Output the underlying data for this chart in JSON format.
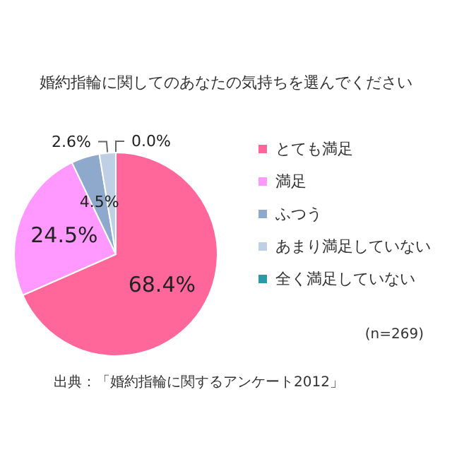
{
  "chart_data": {
    "type": "pie",
    "title": "婚約指輪に関してのあなたの気持ちを選んでください",
    "categories": [
      "とても満足",
      "満足",
      "ふつう",
      "あまり満足していない",
      "全く満足していない"
    ],
    "values": [
      68.4,
      24.5,
      4.5,
      2.6,
      0.0
    ],
    "value_labels": [
      "68.4%",
      "24.5%",
      "4.5%",
      "2.6%",
      "0.0%"
    ],
    "colors": [
      "#ff6699",
      "#ff99ff",
      "#8fa9cc",
      "#c0d0e4",
      "#2a9aa8"
    ],
    "legend": "right",
    "annotations": [
      "(n=269)",
      "出典：「婚約指輪に関するアンケート2012」"
    ]
  }
}
